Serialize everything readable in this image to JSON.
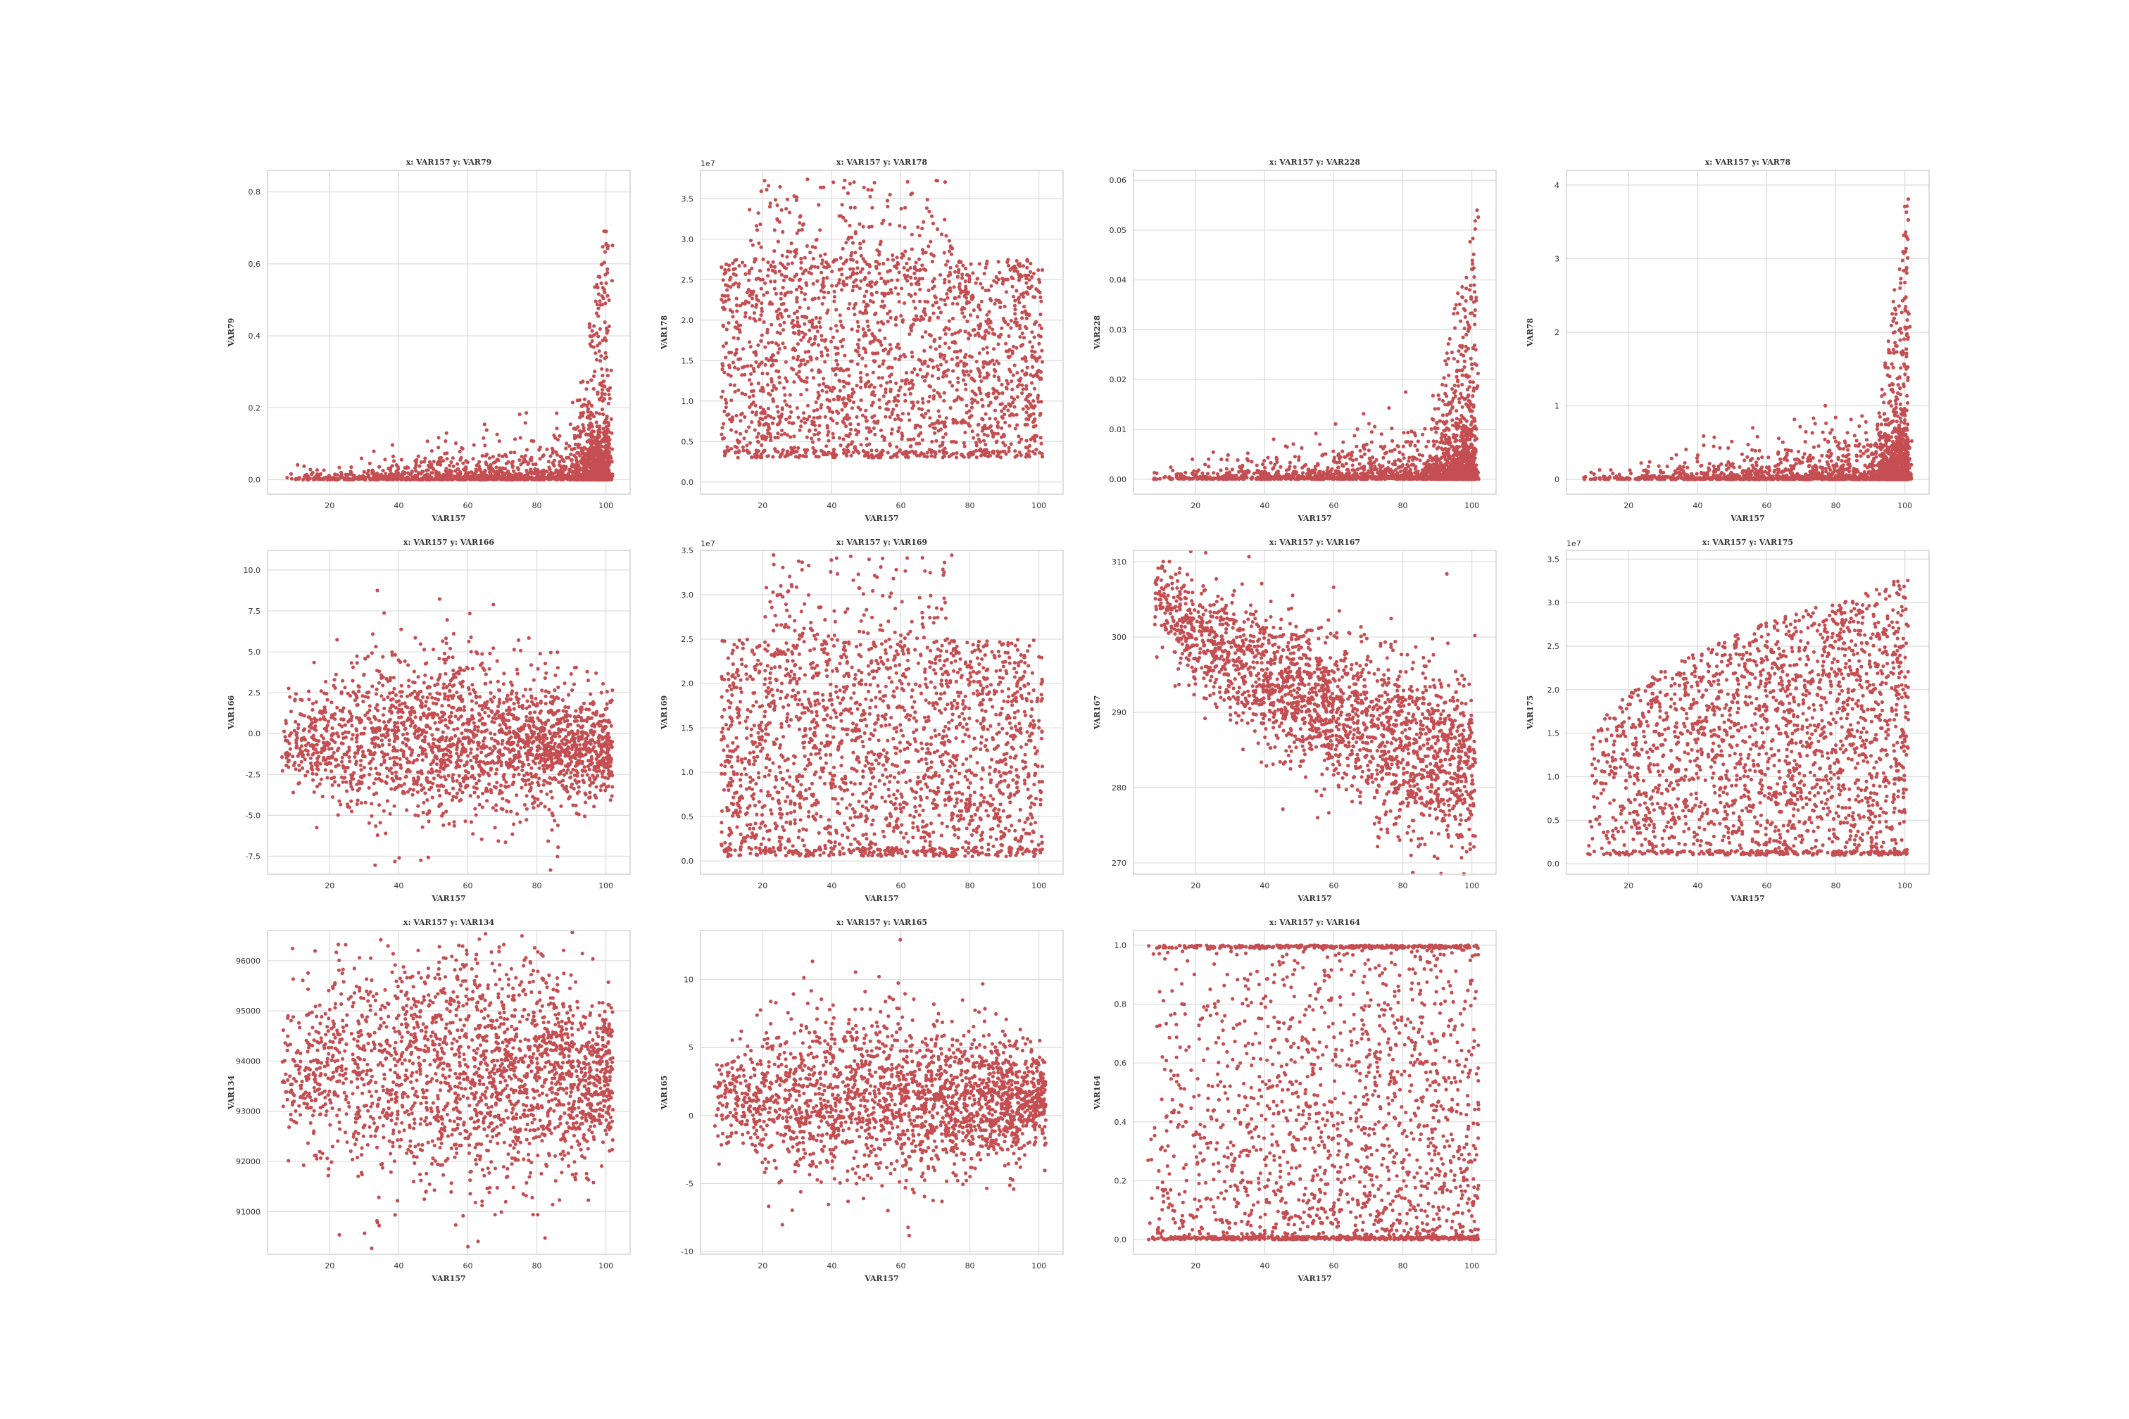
{
  "figure": {
    "point_color": "#c44e52",
    "background": "#ffffff",
    "grid": true
  },
  "chart_data": [
    {
      "type": "scatter",
      "title": "x: VAR157 y: VAR79",
      "xlabel": "VAR157",
      "ylabel": "VAR79",
      "xlim": [
        2,
        107
      ],
      "ylim": [
        -0.04,
        0.86
      ],
      "xticks": [
        "20",
        "40",
        "60",
        "80",
        "100"
      ],
      "yticks": [
        "0.0",
        "0.2",
        "0.4",
        "0.6",
        "0.8"
      ],
      "y_offset_text": "",
      "pattern": {
        "kind": "rising_tail",
        "base": 0.0,
        "scale": 0.05,
        "tail_x": 88,
        "tail_max": 0.8
      }
    },
    {
      "type": "scatter",
      "title": "x: VAR157 y: VAR178",
      "xlabel": "VAR157",
      "ylabel": "VAR178",
      "xlim": [
        2,
        107
      ],
      "ylim": [
        -0.15,
        3.85
      ],
      "xticks": [
        "20",
        "40",
        "60",
        "80",
        "100"
      ],
      "yticks": [
        "0.0",
        "0.5",
        "1.0",
        "1.5",
        "2.0",
        "2.5",
        "3.0",
        "3.5"
      ],
      "y_offset_text": "1e7",
      "pattern": {
        "kind": "block",
        "ylo": 0.3,
        "yhi": 2.75,
        "xlo": 8,
        "xhi": 101,
        "top_cap": 3.75,
        "top_x": [
          15,
          75
        ]
      }
    },
    {
      "type": "scatter",
      "title": "x: VAR157 y: VAR228",
      "xlabel": "VAR157",
      "ylabel": "VAR228",
      "xlim": [
        2,
        107
      ],
      "ylim": [
        -0.003,
        0.062
      ],
      "xticks": [
        "20",
        "40",
        "60",
        "80",
        "100"
      ],
      "yticks": [
        "0.00",
        "0.01",
        "0.02",
        "0.03",
        "0.04",
        "0.05",
        "0.06"
      ],
      "y_offset_text": "",
      "pattern": {
        "kind": "rising_tail",
        "base": 0.0,
        "scale": 0.004,
        "tail_x": 85,
        "tail_max": 0.055
      }
    },
    {
      "type": "scatter",
      "title": "x: VAR157 y: VAR78",
      "xlabel": "VAR157",
      "ylabel": "VAR78",
      "xlim": [
        2,
        107
      ],
      "ylim": [
        -0.2,
        4.2
      ],
      "xticks": [
        "20",
        "40",
        "60",
        "80",
        "100"
      ],
      "yticks": [
        "0",
        "1",
        "2",
        "3",
        "4"
      ],
      "y_offset_text": "",
      "pattern": {
        "kind": "rising_tail",
        "base": 0.0,
        "scale": 0.25,
        "tail_x": 90,
        "tail_max": 4.1
      }
    },
    {
      "type": "scatter",
      "title": "x: VAR157 y: VAR166",
      "xlabel": "VAR157",
      "ylabel": "VAR166",
      "xlim": [
        2,
        107
      ],
      "ylim": [
        -8.6,
        11.2
      ],
      "xticks": [
        "20",
        "40",
        "60",
        "80",
        "100"
      ],
      "yticks": [
        "-7.5",
        "-5.0",
        "-2.5",
        "0.0",
        "2.5",
        "5.0",
        "7.5",
        "10.0"
      ],
      "y_offset_text": "",
      "pattern": {
        "kind": "blob",
        "center": -0.8,
        "spread": 2.6,
        "xlo": 6,
        "xhi": 102,
        "dome": 1.8
      }
    },
    {
      "type": "scatter",
      "title": "x: VAR157 y: VAR169",
      "xlabel": "VAR157",
      "ylabel": "VAR169",
      "xlim": [
        2,
        107
      ],
      "ylim": [
        -0.15,
        3.5
      ],
      "xticks": [
        "20",
        "40",
        "60",
        "80",
        "100"
      ],
      "yticks": [
        "0.0",
        "0.5",
        "1.0",
        "1.5",
        "2.0",
        "2.5",
        "3.0",
        "3.5"
      ],
      "y_offset_text": "1e7",
      "pattern": {
        "kind": "block",
        "ylo": 0.05,
        "yhi": 2.5,
        "xlo": 8,
        "xhi": 101,
        "top_cap": 3.45,
        "top_x": [
          20,
          75
        ]
      }
    },
    {
      "type": "scatter",
      "title": "x: VAR157 y: VAR167",
      "xlabel": "VAR157",
      "ylabel": "VAR167",
      "xlim": [
        2,
        107
      ],
      "ylim": [
        268.5,
        311.5
      ],
      "xticks": [
        "20",
        "40",
        "60",
        "80",
        "100"
      ],
      "yticks": [
        "270",
        "280",
        "290",
        "300",
        "310"
      ],
      "y_offset_text": "",
      "pattern": {
        "kind": "band",
        "y_at_lo": 306,
        "y_at_hi": 282,
        "xlo": 8,
        "xhi": 101,
        "spread": 6
      }
    },
    {
      "type": "scatter",
      "title": "x: VAR157 y: VAR175",
      "xlabel": "VAR157",
      "ylabel": "VAR175",
      "xlim": [
        2,
        107
      ],
      "ylim": [
        -0.12,
        3.6
      ],
      "xticks": [
        "20",
        "40",
        "60",
        "80",
        "100"
      ],
      "yticks": [
        "0.0",
        "0.5",
        "1.0",
        "1.5",
        "2.0",
        "2.5",
        "3.0",
        "3.5"
      ],
      "y_offset_text": "1e7",
      "pattern": {
        "kind": "fan",
        "ylo": 0.1,
        "yhi_start": 1.2,
        "yhi_end": 3.3,
        "xlo": 8,
        "xhi": 101
      }
    },
    {
      "type": "scatter",
      "title": "x: VAR157 y: VAR134",
      "xlabel": "VAR157",
      "ylabel": "VAR134",
      "xlim": [
        2,
        107
      ],
      "ylim": [
        90150,
        96600
      ],
      "xticks": [
        "20",
        "40",
        "60",
        "80",
        "100"
      ],
      "yticks": [
        "91000",
        "92000",
        "93000",
        "94000",
        "95000",
        "96000"
      ],
      "y_offset_text": "",
      "pattern": {
        "kind": "blob",
        "center": 93700,
        "spread": 1300,
        "xlo": 6,
        "xhi": 102,
        "dome": 700
      }
    },
    {
      "type": "scatter",
      "title": "x: VAR157 y: VAR165",
      "xlabel": "VAR157",
      "ylabel": "VAR165",
      "xlim": [
        2,
        107
      ],
      "ylim": [
        -10.2,
        13.6
      ],
      "xticks": [
        "20",
        "40",
        "60",
        "80",
        "100"
      ],
      "yticks": [
        "-10",
        "-5",
        "0",
        "5",
        "10"
      ],
      "y_offset_text": "",
      "pattern": {
        "kind": "blob",
        "center": 1.0,
        "spread": 3.2,
        "xlo": 6,
        "xhi": 102,
        "dome": 1.5
      }
    },
    {
      "type": "scatter",
      "title": "x: VAR157 y: VAR164",
      "xlabel": "VAR157",
      "ylabel": "VAR164",
      "xlim": [
        2,
        107
      ],
      "ylim": [
        -0.05,
        1.05
      ],
      "xticks": [
        "20",
        "40",
        "60",
        "80",
        "100"
      ],
      "yticks": [
        "0.0",
        "0.2",
        "0.4",
        "0.6",
        "0.8",
        "1.0"
      ],
      "y_offset_text": "",
      "pattern": {
        "kind": "bounded",
        "ylo": 0.0,
        "yhi": 1.0,
        "xlo": 6,
        "xhi": 102
      }
    }
  ]
}
